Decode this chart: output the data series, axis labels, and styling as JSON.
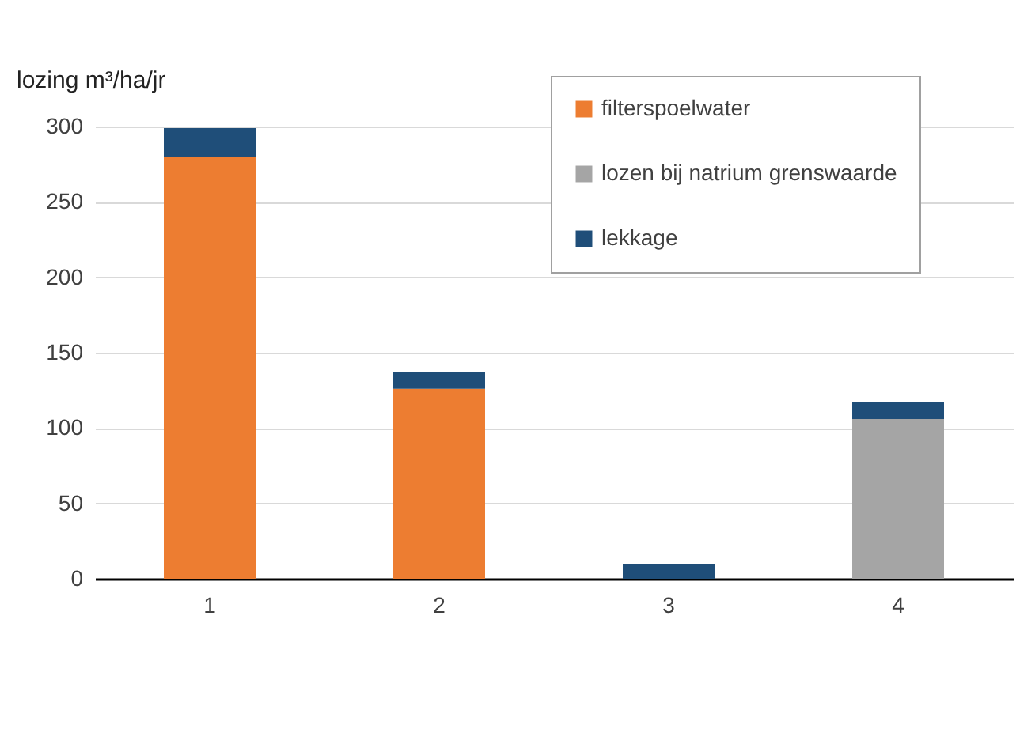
{
  "chart_data": {
    "type": "bar",
    "stacked": true,
    "ylabel": "lozing m³/ha/jr",
    "categories": [
      "1",
      "2",
      "3",
      "4"
    ],
    "series": [
      {
        "name": "filterspoelwater",
        "color": "#ed7d31",
        "values": [
          280,
          126,
          null,
          null
        ]
      },
      {
        "name": "lozen bij natrium grenswaarde",
        "color": "#a5a5a5",
        "values": [
          null,
          null,
          null,
          106
        ]
      },
      {
        "name": "lekkage",
        "color": "#1f4e79",
        "values": [
          19,
          11,
          10,
          11
        ]
      }
    ],
    "ylim": [
      0,
      300
    ],
    "yticks": [
      0,
      50,
      100,
      150,
      200,
      250,
      300
    ],
    "grid": "y",
    "legend": "top right"
  }
}
